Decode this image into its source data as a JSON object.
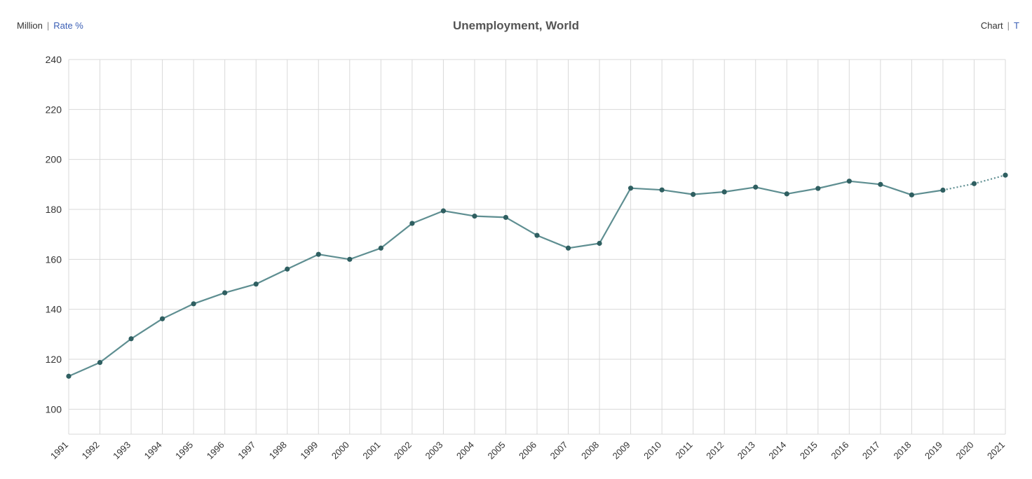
{
  "header": {
    "title": "Unemployment, World",
    "unit_toggle": {
      "million_label": "Million",
      "rate_label": "Rate %"
    },
    "view_toggle": {
      "chart_label": "Chart",
      "table_label": "T"
    },
    "separator": "|"
  },
  "colors": {
    "line": "#5e8e91",
    "point": "#2f5f61",
    "grid": "#d9d9d9",
    "link": "#3b5fb5"
  },
  "chart_data": {
    "type": "line",
    "title": "Unemployment, World",
    "xlabel": "",
    "ylabel": "",
    "ylim": [
      90,
      240
    ],
    "yticks": [
      100,
      120,
      140,
      160,
      180,
      200,
      220,
      240
    ],
    "grid": true,
    "x": [
      "1991",
      "1992",
      "1993",
      "1994",
      "1995",
      "1996",
      "1997",
      "1998",
      "1999",
      "2000",
      "2001",
      "2002",
      "2003",
      "2004",
      "2005",
      "2006",
      "2007",
      "2008",
      "2009",
      "2010",
      "2011",
      "2012",
      "2013",
      "2014",
      "2015",
      "2016",
      "2017",
      "2018",
      "2019",
      "2020",
      "2021"
    ],
    "series": [
      {
        "values": [
          113.2,
          118.7,
          128.2,
          136.2,
          142.2,
          146.6,
          150.1,
          156.1,
          162.0,
          160.0,
          164.5,
          174.4,
          179.4,
          177.3,
          176.8,
          169.6,
          164.5,
          166.4,
          188.5,
          187.8,
          186.0,
          187.0,
          188.9,
          186.2,
          188.4,
          191.3,
          190.0,
          185.8,
          187.7,
          190.3,
          193.7
        ],
        "projected_from": "2019"
      }
    ]
  }
}
